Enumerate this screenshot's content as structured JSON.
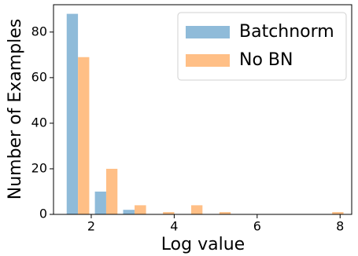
{
  "chart_data": {
    "type": "histogram",
    "x_label": "Log value",
    "y_label": "Number of Examples",
    "bins": [
      1.34,
      2.02,
      2.7,
      3.39,
      4.07,
      4.75,
      5.43,
      6.11,
      6.79,
      7.47,
      8.15
    ],
    "series": [
      {
        "name": "Batchnorm",
        "color": "#8fbbd9",
        "values": [
          88,
          10,
          2,
          0,
          0,
          0,
          0,
          0,
          0,
          0
        ]
      },
      {
        "name": "No BN",
        "color": "#ffbf86",
        "values": [
          69,
          20,
          4,
          1,
          4,
          1,
          0,
          0,
          0,
          1
        ]
      }
    ],
    "xlim": [
      1.09,
      8.28
    ],
    "xticks": [
      2,
      4,
      6,
      8
    ],
    "ylim": [
      0,
      92
    ],
    "yticks": [
      0,
      20,
      40,
      60,
      80
    ],
    "legend": "upper right"
  }
}
